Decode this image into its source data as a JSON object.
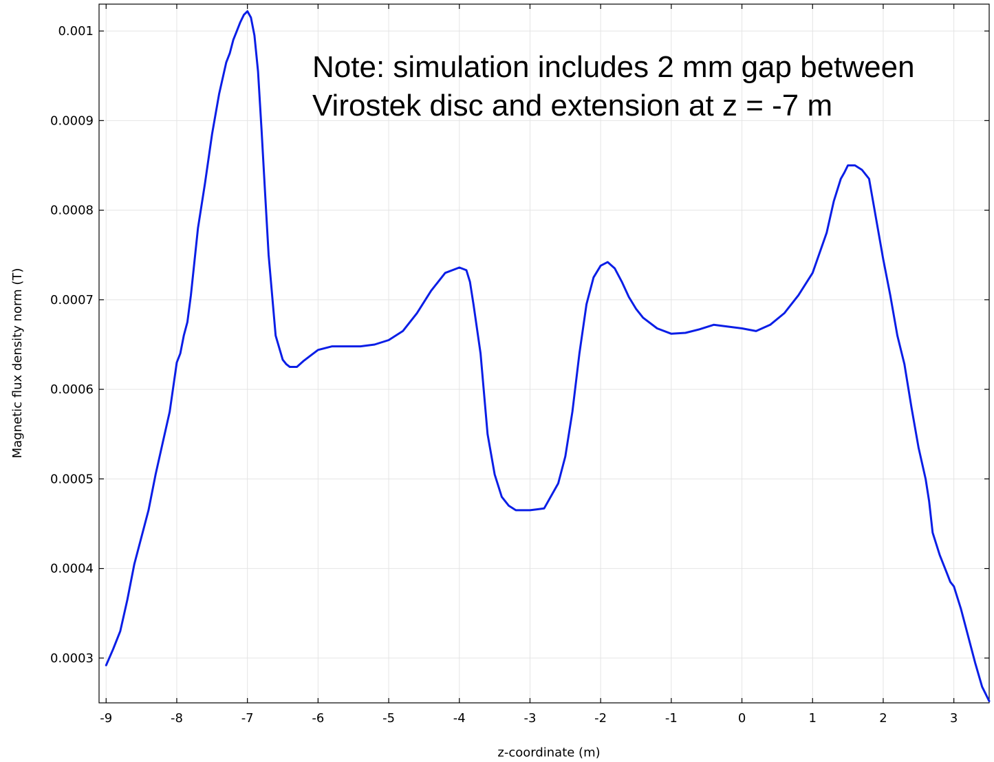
{
  "chart_data": {
    "type": "line",
    "title": "",
    "xlabel": "z-coordinate (m)",
    "ylabel": "Magnetic flux density norm (T)",
    "xlim": [
      -9.1,
      3.5
    ],
    "ylim": [
      0.00025,
      0.00103
    ],
    "x_ticks": [
      -9,
      -8,
      -7,
      -6,
      -5,
      -4,
      -3,
      -2,
      -1,
      0,
      1,
      2,
      3
    ],
    "x_tick_labels": [
      "-9",
      "-8",
      "-7",
      "-6",
      "-5",
      "-4",
      "-3",
      "-2",
      "-1",
      "0",
      "1",
      "2",
      "3"
    ],
    "y_ticks": [
      0.0003,
      0.0004,
      0.0005,
      0.0006,
      0.0007,
      0.0008,
      0.0009,
      0.001
    ],
    "y_tick_labels": [
      "0.0003",
      "0.0004",
      "0.0005",
      "0.0006",
      "0.0007",
      "0.0008",
      "0.0009",
      "0.001"
    ],
    "grid": true,
    "annotations": [
      "Note: simulation includes 2 mm gap between",
      "Virostek disc and extension  at z = -7 m"
    ],
    "series": [
      {
        "color": "#0a1ee6",
        "x": [
          -9.0,
          -8.9,
          -8.8,
          -8.7,
          -8.6,
          -8.5,
          -8.4,
          -8.3,
          -8.2,
          -8.1,
          -8.0,
          -7.95,
          -7.9,
          -7.85,
          -7.8,
          -7.7,
          -7.6,
          -7.5,
          -7.4,
          -7.3,
          -7.25,
          -7.2,
          -7.15,
          -7.1,
          -7.05,
          -7.0,
          -6.95,
          -6.9,
          -6.85,
          -6.8,
          -6.75,
          -6.7,
          -6.6,
          -6.5,
          -6.45,
          -6.4,
          -6.3,
          -6.2,
          -6.1,
          -6.0,
          -5.9,
          -5.8,
          -5.6,
          -5.4,
          -5.2,
          -5.0,
          -4.8,
          -4.6,
          -4.4,
          -4.2,
          -4.0,
          -3.9,
          -3.85,
          -3.8,
          -3.7,
          -3.6,
          -3.5,
          -3.4,
          -3.3,
          -3.2,
          -3.1,
          -3.0,
          -2.9,
          -2.8,
          -2.6,
          -2.5,
          -2.4,
          -2.3,
          -2.2,
          -2.1,
          -2.0,
          -1.9,
          -1.8,
          -1.7,
          -1.6,
          -1.5,
          -1.4,
          -1.2,
          -1.0,
          -0.8,
          -0.6,
          -0.4,
          -0.2,
          0.0,
          0.2,
          0.4,
          0.6,
          0.8,
          1.0,
          1.2,
          1.3,
          1.4,
          1.45,
          1.5,
          1.6,
          1.7,
          1.8,
          1.9,
          2.0,
          2.1,
          2.2,
          2.3,
          2.4,
          2.5,
          2.6,
          2.65,
          2.7,
          2.8,
          2.9,
          2.95,
          3.0,
          3.1,
          3.2,
          3.3,
          3.4,
          3.5
        ],
        "y": [
          0.000292,
          0.00031,
          0.00033,
          0.000365,
          0.000405,
          0.000435,
          0.000465,
          0.000505,
          0.00054,
          0.000575,
          0.00063,
          0.00064,
          0.00066,
          0.000675,
          0.000705,
          0.00078,
          0.00083,
          0.000885,
          0.00093,
          0.000965,
          0.000975,
          0.00099,
          0.001,
          0.00101,
          0.001018,
          0.001022,
          0.001015,
          0.000995,
          0.000955,
          0.00089,
          0.00082,
          0.00075,
          0.00066,
          0.000633,
          0.000628,
          0.000625,
          0.000625,
          0.000632,
          0.000638,
          0.000644,
          0.000646,
          0.000648,
          0.000648,
          0.000648,
          0.00065,
          0.000655,
          0.000665,
          0.000685,
          0.00071,
          0.00073,
          0.000736,
          0.000733,
          0.00072,
          0.000695,
          0.00064,
          0.00055,
          0.000505,
          0.00048,
          0.00047,
          0.000465,
          0.000465,
          0.000465,
          0.000466,
          0.000467,
          0.000495,
          0.000525,
          0.000575,
          0.00064,
          0.000695,
          0.000725,
          0.000738,
          0.000742,
          0.000735,
          0.00072,
          0.000703,
          0.00069,
          0.00068,
          0.000668,
          0.000662,
          0.000663,
          0.000667,
          0.000672,
          0.00067,
          0.000668,
          0.000665,
          0.000672,
          0.000685,
          0.000705,
          0.00073,
          0.000775,
          0.00081,
          0.000835,
          0.000842,
          0.00085,
          0.00085,
          0.000845,
          0.000835,
          0.00079,
          0.000745,
          0.000705,
          0.00066,
          0.000628,
          0.00058,
          0.000535,
          0.0005,
          0.000475,
          0.00044,
          0.000415,
          0.000395,
          0.000385,
          0.00038,
          0.000355,
          0.000325,
          0.000295,
          0.000268,
          0.000252
        ]
      }
    ]
  }
}
